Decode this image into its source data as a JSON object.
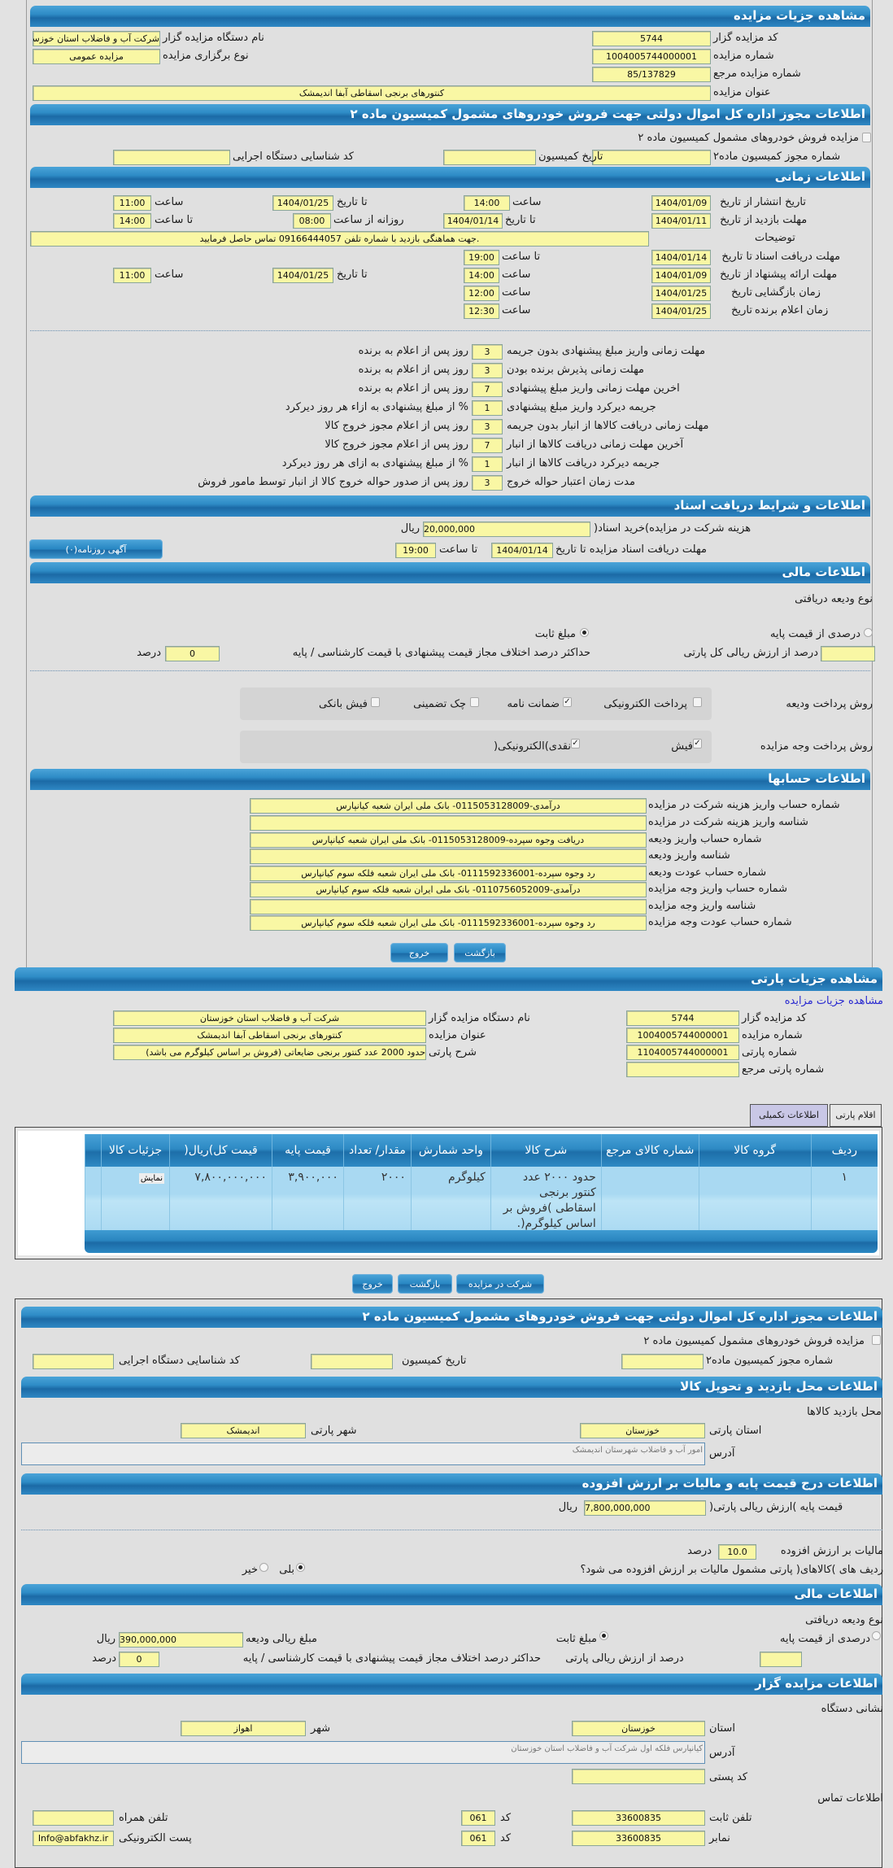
{
  "auction": {
    "title": "مشاهده جزیات مزایده",
    "code_label": "کد مزایده گزار",
    "code": "5744",
    "number_label": "شماره مزایده",
    "number": "1004005744000001",
    "ref_label": "شماره مزایده مرجع",
    "ref": "85/137829",
    "title_label": "عنوان مزایده",
    "subject": "کنتورهای برنجی اسقاطی آبفا اندیمشک",
    "org_label": "نام دستگاه مزایده گزار",
    "org": "شرکت آب و فاضلاب استان خوزستان",
    "type_label": "نوع برگزاری مزایده",
    "type": "مزایده عمومی"
  },
  "permit": {
    "title": "اطلاعات مجوز اداره کل اموال دولتی جهت فروش خودروهای مشمول کمیسیون ماده ۲",
    "checkbox_label": "مزایده فروش خودروهای مشمول کمیسیون ماده ۲",
    "checked": false,
    "permit_no_label": "شماره مجوز کمیسیون ماده۲",
    "commission_date_label": "تاریخ کمیسیون",
    "exec_code_label": "کد شناسایی دستگاه اجرایی"
  },
  "timing": {
    "title": "اطلاعات زمانی",
    "publish": {
      "label": "تاریخ انتشار",
      "from_label": "از تاریخ",
      "from": "1404/01/09",
      "time_label": "ساعت",
      "time": "14:00",
      "to_label": "تا تاریخ",
      "to": "1404/01/25",
      "to_time_label": "ساعت",
      "to_time": "11:00"
    },
    "visit": {
      "label": "مهلت بازدید",
      "from_label": "از تاریخ",
      "from": "1404/01/11",
      "to_label": "تا تاریخ",
      "to": "1404/01/14",
      "daily_label": "روزانه از ساعت",
      "daily_from": "08:00",
      "until_label": "تا ساعت",
      "until": "14:00"
    },
    "notes_label": "توضیحات",
    "notes": ".جهت هماهنگی بازدید با شماره تلفن 09166444057 تماس حاصل فرمایید",
    "docs": {
      "label": "مهلت دریافت اسناد",
      "to_label": "تا تاریخ",
      "to": "1404/01/14",
      "time_label": "تا ساعت",
      "time": "19:00"
    },
    "offer": {
      "label": "مهلت ارائه پیشنهاد",
      "from_label": "از تاریخ",
      "from": "1404/01/09",
      "time_label": "ساعت",
      "time": "14:00",
      "to_label": "تا تاریخ",
      "to": "1404/01/25",
      "to_time_label": "ساعت",
      "to_time": "11:00"
    },
    "opening": {
      "label": "زمان بازگشایی",
      "date_label": "تاریخ",
      "date": "1404/01/25",
      "time_label": "ساعت",
      "time": "12:00"
    },
    "winner": {
      "label": "زمان اعلام برنده",
      "date_label": "تاریخ",
      "date": "1404/01/25",
      "time_label": "ساعت",
      "time": "12:30"
    }
  },
  "penalties": [
    {
      "label": "مهلت زمانی واریز مبلغ پیشنهادی بدون جریمه",
      "value": "3",
      "suffix": "روز پس از اعلام به برنده"
    },
    {
      "label": "مهلت زمانی پذیرش برنده بودن",
      "value": "3",
      "suffix": "روز پس از اعلام به برنده"
    },
    {
      "label": "اخرین مهلت زمانی واریز مبلغ پیشنهادی",
      "value": "7",
      "suffix": "روز پس از اعلام به برنده"
    },
    {
      "label": "جریمه دیرکرد واریز مبلغ پیشنهادی",
      "value": "1",
      "suffix": "% از مبلغ پیشنهادی به ازاء هر روز دیرکرد"
    },
    {
      "label": "مهلت زمانی دریافت کالاها از انبار بدون جریمه",
      "value": "3",
      "suffix": "روز پس از اعلام مجوز خروج کالا"
    },
    {
      "label": "آخرین مهلت زمانی دریافت کالاها از انبار",
      "value": "7",
      "suffix": "روز پس از اعلام مجوز خروج کالا"
    },
    {
      "label": "جریمه دیرکرد دریافت کالاها از انبار",
      "value": "1",
      "suffix": "% از مبلغ پیشنهادی به ازای هر روز دیرکرد"
    },
    {
      "label": "مدت زمان اعتبار حواله خروج",
      "value": "3",
      "suffix": "روز پس از صدور حواله خروج کالا از انبار توسط مامور فروش"
    }
  ],
  "docs": {
    "title": "اطلاعات و شرایط دریافت اسناد",
    "fee_label": "هزینه شرکت در مزایده)خرید اسناد(",
    "fee": "20,000,000",
    "currency": "ریال",
    "deadline_label": "مهلت دریافت اسناد مزایده تا تاریخ",
    "deadline_date": "1404/01/14",
    "deadline_time_label": "تا ساعت",
    "deadline_time": "19:00",
    "news_button": "آگهی روزنامه(۰)"
  },
  "financial": {
    "title": "اطلاعات مالی",
    "deposit_type_label": "نوع ودیعه دریافتی",
    "percent_option": "درصدی از قیمت پایه",
    "fixed_option": "مبلغ ثابت",
    "selected": "fixed",
    "percent_of_total_label": "درصد از ارزش ریالی کل پارتی",
    "percent_of_total": "",
    "max_diff_label": "حداکثر درصد اختلاف مجاز قیمت پیشنهادی با قیمت کارشناسی / پایه",
    "max_diff": "0",
    "percent_unit": "درصد",
    "deposit_method_label": "روش پرداخت ودیعه",
    "deposit_methods": [
      {
        "label": "پرداخت الکترونیکی",
        "checked": false
      },
      {
        "label": "ضمانت نامه",
        "checked": true
      },
      {
        "label": "چک تضمینی",
        "checked": false
      },
      {
        "label": "فیش بانکی",
        "checked": false
      }
    ],
    "payment_method_label": "روش پرداخت وجه مزایده",
    "payment_methods": [
      {
        "label": "فیش",
        "checked": true
      },
      {
        "label": "نقدی)الکترونیکی(",
        "checked": true
      }
    ]
  },
  "accounts": {
    "title": "اطلاعات حسابها",
    "rows": [
      {
        "label": "شماره حساب واریز هزینه شرکت در مزایده",
        "value": "درآمدی-0115053128009- بانک ملی ایران شعبه کیانپارس"
      },
      {
        "label": "شناسه واریز هزینه شرکت در مزایده",
        "value": ""
      },
      {
        "label": "شماره حساب واریز ودیعه",
        "value": "دریافت وجوه سپرده-0115053128009- بانک ملی ایران شعبه کیانپارس"
      },
      {
        "label": "شناسه واریز ودیعه",
        "value": ""
      },
      {
        "label": "شماره حساب عودت ودیعه",
        "value": "رد وجوه سپرده-0111592336001- بانک ملی ایران شعبه فلکه سوم کیانپارس"
      },
      {
        "label": "شماره حساب واریز وجه مزایده",
        "value": "درآمدی-0110756052009- بانک ملی ایران شعبه فلکه سوم کیانپارس"
      },
      {
        "label": "شناسه واریز وجه مزایده",
        "value": ""
      },
      {
        "label": "شماره حساب عودت وجه مزایده",
        "value": "رد وجوه سپرده-0111592336001- بانک ملی ایران شعبه فلکه سوم کیانپارس"
      }
    ]
  },
  "buttons": {
    "exit": "خروج",
    "back": "بازگشت",
    "participate": "شرکت در مزایده"
  },
  "party": {
    "title": "مشاهده جزیات پارتی",
    "auction_link": "مشاهده جزیات مزایده",
    "code_label": "کد مزایده گزار",
    "code": "5744",
    "number_label": "شماره مزایده",
    "number": "1004005744000001",
    "party_no_label": "شماره پارتی",
    "party_no": "1104005744000001",
    "party_ref_label": "شماره پارتی مرجع",
    "party_ref": "",
    "org_label": "نام دستگاه مزایده گزار",
    "org": "شرکت آب و فاضلاب استان خوزستان",
    "subject_label": "عنوان مزایده",
    "subject": "کنتورهای برنجی اسقاطی آبفا اندیمشک",
    "desc_label": "شرح پارتی",
    "desc": "حدود 2000 عدد کنتور برنجی ضایعاتی (فروش بر اساس کیلوگرم می باشد)",
    "tabs": [
      {
        "label": "اقلام پارتی",
        "active": false
      },
      {
        "label": "اطلاعات تکمیلی",
        "active": true
      }
    ]
  },
  "items": {
    "headers": [
      "ردیف",
      "گروه کالا",
      "شماره کالای مرجع",
      "شرح کالا",
      "واحد شمارش",
      "مقدار/ تعداد",
      "قیمت پایه",
      "قیمت کل)ریال(",
      "جزئیات کالا"
    ],
    "rows": [
      {
        "row": "۱",
        "group": "",
        "ref": "",
        "desc": "حدود ۲۰۰۰ عدد کنتور برنجی اسقاطی )فروش بر اساس کیلوگرم(.",
        "unit": "کیلوگرم",
        "qty": "۲۰۰۰",
        "base_price": "۳,۹۰۰,۰۰۰",
        "total": "۷,۸۰۰,۰۰۰,۰۰۰",
        "details": "نمایش"
      }
    ]
  },
  "location": {
    "title": "اطلاعات محل بازدید و تحویل کالا",
    "visit_place_label": "محل بازدید کالاها",
    "province_label": "استان پارتی",
    "province": "خوزستان",
    "city_label": "شهر پارتی",
    "city": "اندیمشک",
    "address_label": "آدرس",
    "address": "امور آب و فاضلاب شهرستان اندیمشک"
  },
  "pricing": {
    "title": "اطلاعات درج قیمت پایه و مالیات بر ارزش افزوده",
    "base_label": "قیمت پایه )ارزش ریالی پارتی(",
    "base": "7,800,000,000",
    "currency": "ریال",
    "vat_label": "مالیات بر ارزش افزوده",
    "vat": "10.0",
    "vat_unit": "درصد",
    "vat_question": "ردیف های )کالاهای( پارتی مشمول مالیات بر ارزش افزوده می شود؟",
    "yes": "بلی",
    "no": "خیر",
    "vat_selected": "yes"
  },
  "financial2": {
    "title": "اطلاعات مالی",
    "deposit_type_label": "نوع ودیعه دریافتی",
    "percent_option": "درصدی از قیمت پایه",
    "fixed_option": "مبلغ ثابت",
    "selected": "fixed",
    "deposit_amount_label": "مبلغ ریالی ودیعه",
    "deposit_amount": "390,000,000",
    "currency": "ریال",
    "percent_of_total_label": "درصد از ارزش ریالی پارتی",
    "percent_of_total": "",
    "max_diff_label": "حداکثر درصد اختلاف مجاز قیمت پیشنهادی با قیمت کارشناسی / پایه",
    "max_diff": "0",
    "percent_unit": "درصد"
  },
  "seller": {
    "title": "اطلاعات مزایده گزار",
    "address_heading": "نشانی دستگاه",
    "province_label": "استان",
    "province": "خوزستان",
    "city_label": "شهر",
    "city": "اهواز",
    "address_label": "آدرس",
    "address": "کیانپارس فلکه اول شرکت آب و فاضلاب استان خوزستان",
    "postal_label": "کد پستی",
    "postal": "",
    "contact_heading": "اطلاعات تماس",
    "phone_label": "تلفن ثابت",
    "phone": "33600835",
    "code_label": "کد",
    "phone_code": "061",
    "mobile_label": "تلفن همراه",
    "mobile": "",
    "fax_label": "نمابر",
    "fax": "33600835",
    "fax_code": "061",
    "email_label": "پست الکترونیکی",
    "email": "Info@abfakhz.ir"
  }
}
